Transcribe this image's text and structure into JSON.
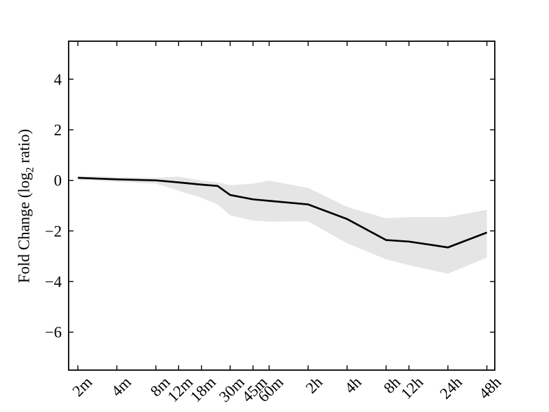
{
  "figure": {
    "background": "#ffffff",
    "y_axis_label": {
      "pre": "Fold Change (log",
      "sub": "2",
      "post": " ratio)"
    }
  },
  "chart_data": {
    "type": "line",
    "title": "",
    "xlabel": "",
    "ylabel": "Fold Change (log2 ratio)",
    "x_scale": "log2-time",
    "grid": false,
    "legend": false,
    "x_tick_labels": [
      "2m",
      "4m",
      "8m",
      "12m",
      "18m",
      "30m",
      "45m",
      "60m",
      "2h",
      "4h",
      "8h",
      "12h",
      "24h",
      "48h"
    ],
    "x_tick_minutes": [
      2,
      4,
      8,
      12,
      18,
      30,
      45,
      60,
      120,
      240,
      480,
      720,
      1440,
      2880
    ],
    "y_ticks": [
      4,
      2,
      0,
      -2,
      -4,
      -6
    ],
    "y_tick_labels": [
      "4",
      "2",
      "0",
      "−2",
      "−4",
      "−6"
    ],
    "ylim": [
      -7.5,
      5.5
    ],
    "xlim_minutes": [
      1.696,
      3315
    ],
    "line_color": "#000000",
    "axis_color": "#000000",
    "series": [
      {
        "name": "fold-change-mean",
        "color": "#000000",
        "x_minutes": [
          2,
          4,
          8,
          12,
          18,
          24,
          30,
          45,
          60,
          120,
          240,
          480,
          720,
          1440,
          2880
        ],
        "values": [
          0.1,
          0.04,
          0.0,
          -0.08,
          -0.17,
          -0.22,
          -0.58,
          -0.75,
          -0.81,
          -0.95,
          -1.53,
          -2.36,
          -2.42,
          -2.65,
          -2.06
        ]
      }
    ],
    "band": {
      "name": "confidence-band",
      "color": "#e5e5e5",
      "x_minutes": [
        2,
        4,
        8,
        12,
        18,
        24,
        30,
        45,
        60,
        120,
        240,
        480,
        720,
        1440,
        2880
      ],
      "upper": [
        0.18,
        0.13,
        0.1,
        0.15,
        -0.01,
        -0.08,
        -0.19,
        -0.13,
        -0.01,
        -0.3,
        -1.05,
        -1.5,
        -1.45,
        -1.45,
        -1.16
      ],
      "lower": [
        0.03,
        -0.06,
        -0.13,
        -0.41,
        -0.69,
        -0.95,
        -1.38,
        -1.59,
        -1.63,
        -1.62,
        -2.49,
        -3.12,
        -3.35,
        -3.69,
        -3.05
      ]
    }
  }
}
